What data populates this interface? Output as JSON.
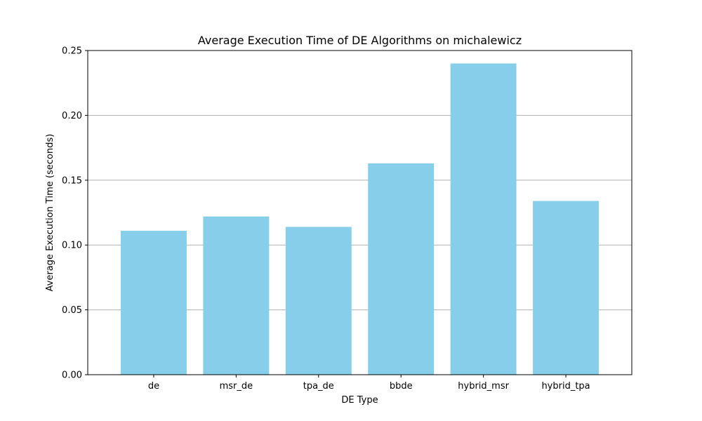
{
  "chart_data": {
    "type": "bar",
    "title": "Average Execution Time of DE Algorithms on michalewicz",
    "xlabel": "DE Type",
    "ylabel": "Average Execution Time (seconds)",
    "categories": [
      "de",
      "msr_de",
      "tpa_de",
      "bbde",
      "hybrid_msr",
      "hybrid_tpa"
    ],
    "values": [
      0.111,
      0.122,
      0.114,
      0.163,
      0.24,
      0.134
    ],
    "ylim": [
      0,
      0.25
    ],
    "yticks": [
      0.0,
      0.05,
      0.1,
      0.15,
      0.2,
      0.25
    ],
    "ytick_labels": [
      "0.00",
      "0.05",
      "0.10",
      "0.15",
      "0.20",
      "0.25"
    ],
    "bar_color": "#87CEEB",
    "grid": "y-axis horizontal lines",
    "grid_color": "#b0b0b0"
  }
}
